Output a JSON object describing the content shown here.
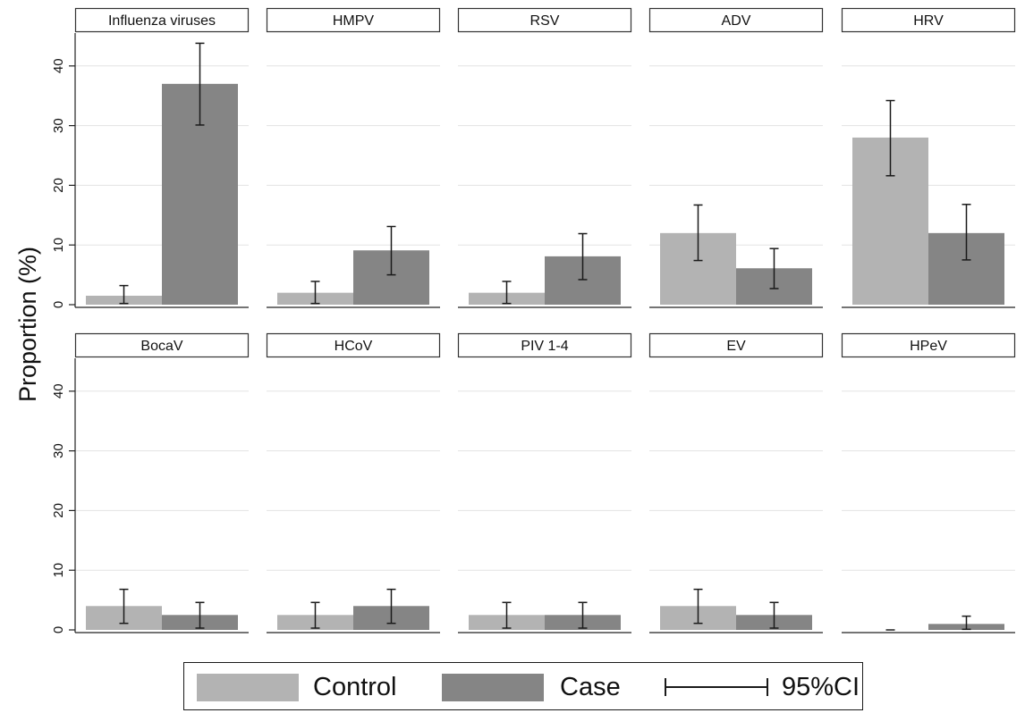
{
  "chart_data": {
    "type": "bar",
    "layout": "small-multiples 2x5",
    "ylabel": "Proportion (%)",
    "xlabel": "",
    "ylim": [
      0,
      45
    ],
    "yticks": [
      "0",
      "10",
      "20",
      "30",
      "40"
    ],
    "grid": true,
    "legend_position": "bottom",
    "series_names": [
      "Control",
      "Case"
    ],
    "error_bar_label": "95%CI",
    "colors": {
      "Control": "#b3b3b3",
      "Case": "#858585",
      "grid": "#e3e3e3",
      "axis": "#222222"
    },
    "panels": [
      {
        "title": "Influenza viruses",
        "values": [
          1.5,
          37.0
        ],
        "ci": [
          [
            0.2,
            3.2
          ],
          [
            30.1,
            43.8
          ]
        ]
      },
      {
        "title": "HMPV",
        "values": [
          2.0,
          9.1
        ],
        "ci": [
          [
            0.2,
            3.9
          ],
          [
            5.0,
            13.1
          ]
        ]
      },
      {
        "title": "RSV",
        "values": [
          2.0,
          8.1
        ],
        "ci": [
          [
            0.2,
            3.9
          ],
          [
            4.2,
            11.9
          ]
        ]
      },
      {
        "title": "ADV",
        "values": [
          12.0,
          6.1
        ],
        "ci": [
          [
            7.4,
            16.7
          ],
          [
            2.7,
            9.4
          ]
        ]
      },
      {
        "title": "HRV",
        "values": [
          28.0,
          12.0
        ],
        "ci": [
          [
            21.6,
            34.2
          ],
          [
            7.5,
            16.8
          ]
        ]
      },
      {
        "title": "BocaV",
        "values": [
          4.0,
          2.5
        ],
        "ci": [
          [
            1.1,
            6.8
          ],
          [
            0.3,
            4.6
          ]
        ]
      },
      {
        "title": "HCoV",
        "values": [
          2.5,
          4.0
        ],
        "ci": [
          [
            0.3,
            4.6
          ],
          [
            1.1,
            6.8
          ]
        ]
      },
      {
        "title": "PIV 1-4",
        "values": [
          2.5,
          2.5
        ],
        "ci": [
          [
            0.3,
            4.6
          ],
          [
            0.3,
            4.6
          ]
        ]
      },
      {
        "title": "EV",
        "values": [
          4.0,
          2.5
        ],
        "ci": [
          [
            1.1,
            6.8
          ],
          [
            0.3,
            4.6
          ]
        ]
      },
      {
        "title": "HPeV",
        "values": [
          0.0,
          1.0
        ],
        "ci": [
          [
            0.0,
            0.0
          ],
          [
            0.1,
            2.3
          ]
        ]
      }
    ]
  }
}
